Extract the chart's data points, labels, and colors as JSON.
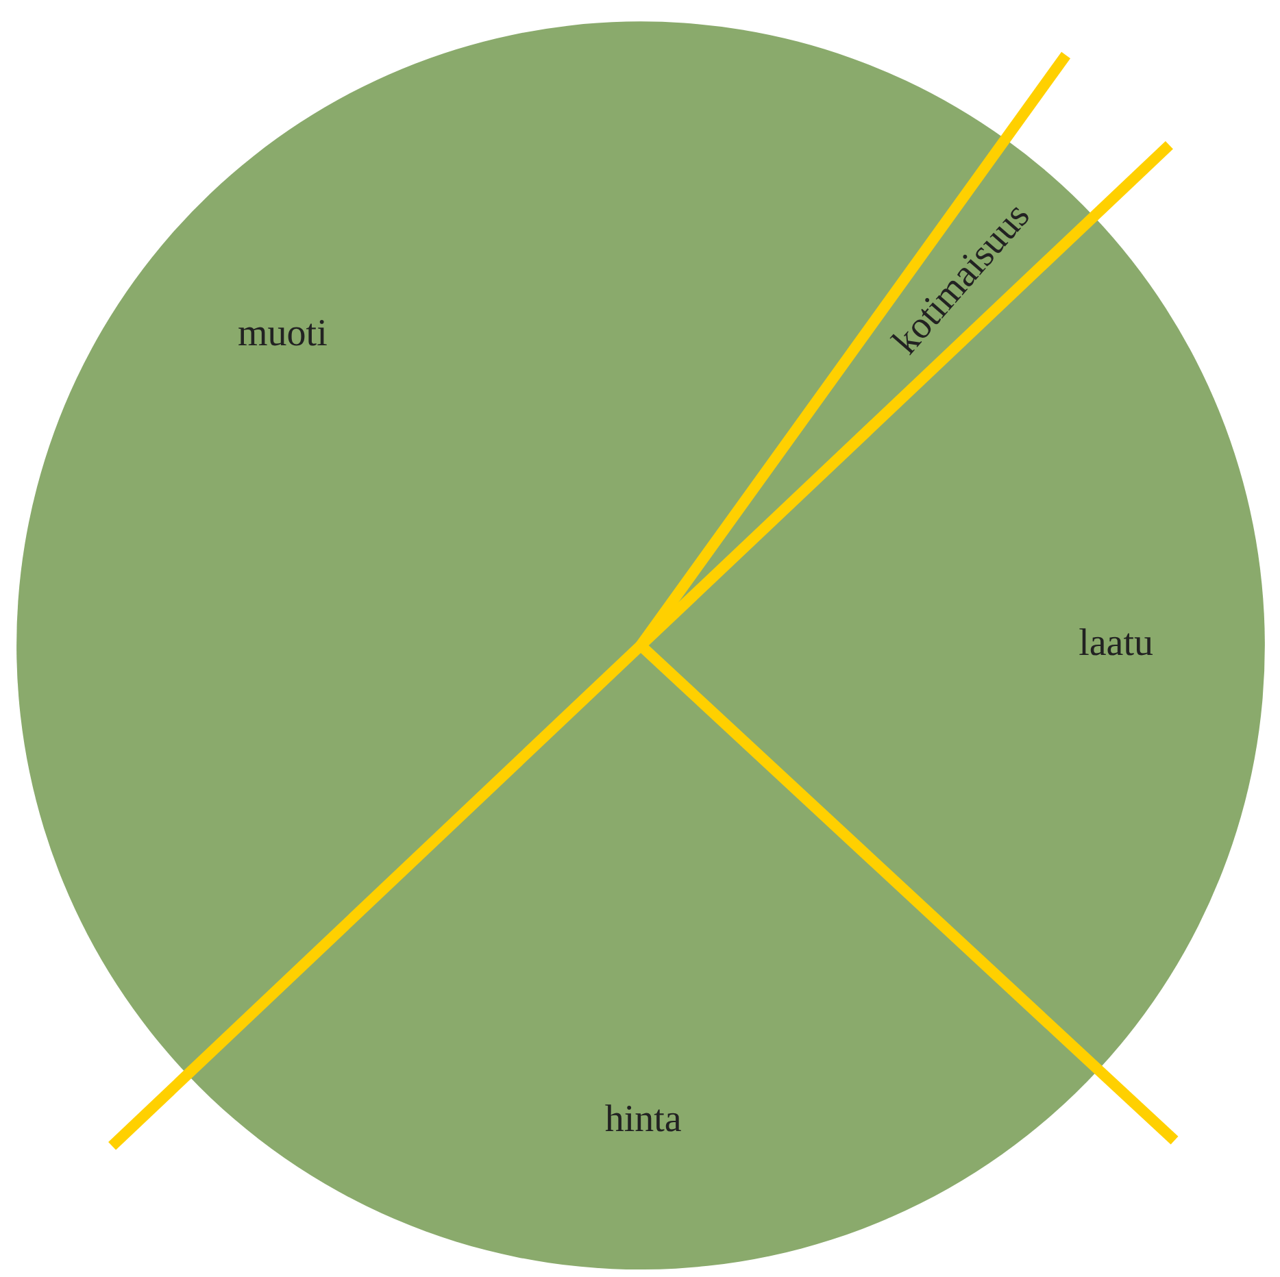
{
  "chart_data": {
    "type": "pie",
    "categories": [
      "kotimaisuus",
      "laatu",
      "hinta",
      "muoti"
    ],
    "values": [
      3,
      24,
      26,
      47
    ],
    "colors": [
      "#8aaa6c",
      "#8aaa6c",
      "#8aaa6c",
      "#8aaa6c"
    ],
    "legend": false
  }
}
